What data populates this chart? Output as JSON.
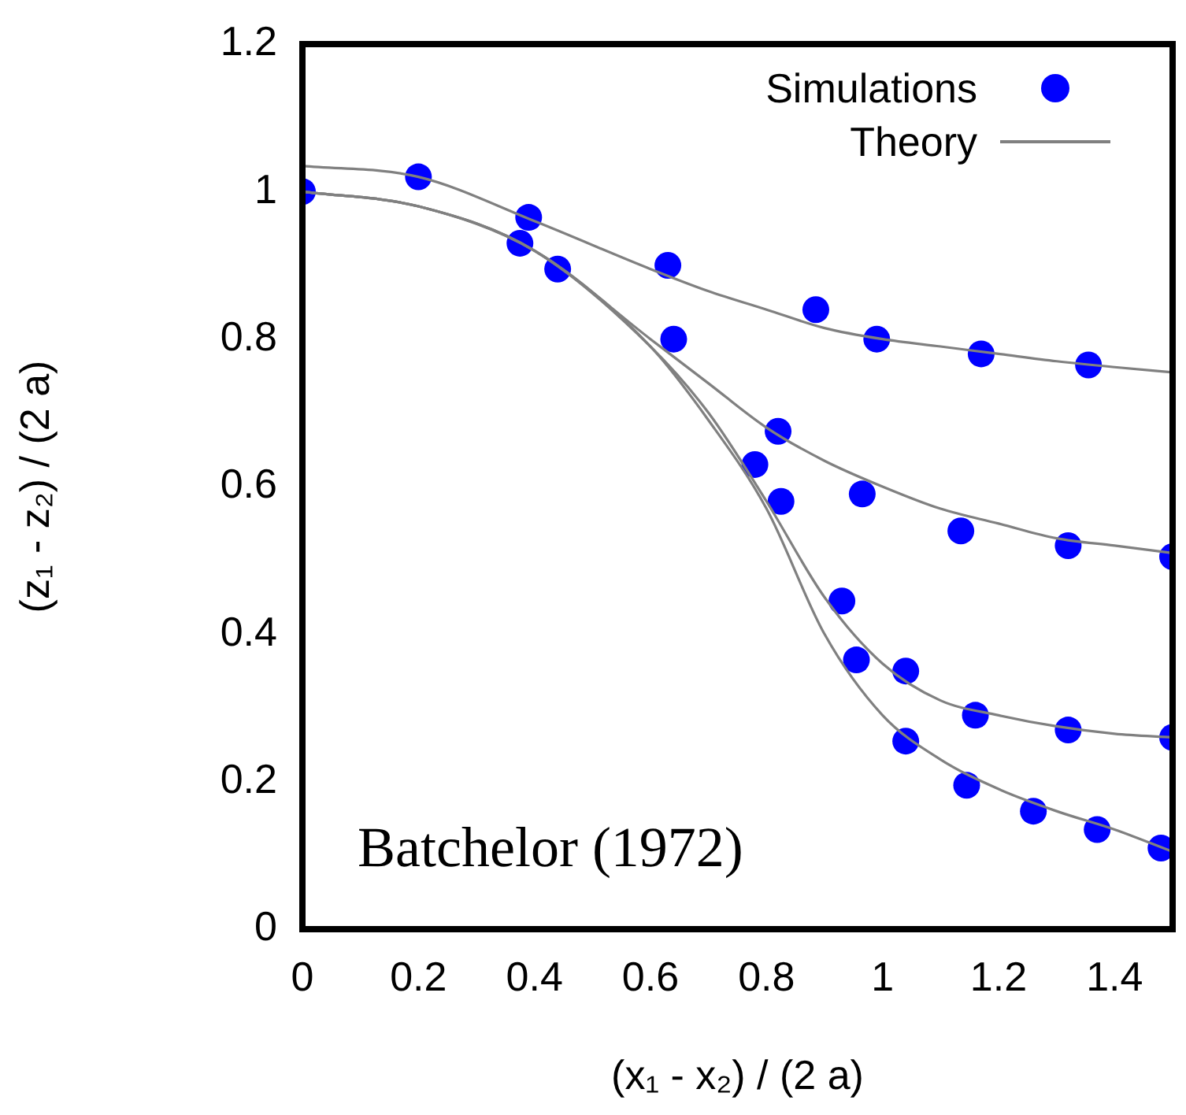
{
  "chart_data": {
    "type": "scatter",
    "xlabel": "(x₁ - x₂) / (2 a)",
    "ylabel": "(z₁ - z₂) / (2 a)",
    "xlim": [
      0,
      1.5
    ],
    "ylim": [
      0,
      1.2
    ],
    "xticks": [
      0,
      0.2,
      0.4,
      0.6,
      0.8,
      1,
      1.2,
      1.4
    ],
    "yticks": [
      0,
      0.2,
      0.4,
      0.6,
      0.8,
      1,
      1.2
    ],
    "grid": false,
    "legend": "top right",
    "annotations": [
      "Batchelor (1972)"
    ],
    "series": [
      {
        "name": "Simulations",
        "marker": "circle",
        "color": "#0000ff",
        "x": [
          0,
          0.2,
          0.39,
          0.375,
          0.44,
          0.63,
          0.64,
          0.885,
          0.78,
          0.82,
          0.825,
          0.965,
          0.99,
          0.93,
          0.955,
          1.04,
          1.04,
          1.16,
          1.135,
          1.17,
          1.145,
          1.32,
          1.32,
          1.355,
          1.26,
          1.37,
          1.48,
          1.5,
          1.5
        ],
        "values": [
          1.0,
          1.02,
          0.965,
          0.93,
          0.895,
          0.9,
          0.8,
          0.84,
          0.63,
          0.675,
          0.58,
          0.59,
          0.8,
          0.445,
          0.365,
          0.35,
          0.255,
          0.29,
          0.54,
          0.78,
          0.195,
          0.27,
          0.52,
          0.765,
          0.16,
          0.135,
          0.11,
          0.26,
          0.505
        ]
      },
      {
        "name": "Theory",
        "type": "line",
        "marker": "none",
        "line_style": "solid",
        "color": "#808080",
        "x": [
          0,
          0.2,
          0.4,
          0.6,
          0.7,
          0.8,
          0.9,
          1.0,
          1.1,
          1.2,
          1.3,
          1.4,
          1.5
        ],
        "values": [
          1.035,
          1.02,
          0.96,
          0.895,
          0.865,
          0.84,
          0.815,
          0.8,
          0.79,
          0.78,
          0.77,
          0.762,
          0.755
        ]
      },
      {
        "type": "line",
        "marker": "none",
        "line_style": "solid",
        "color": "#808080",
        "x": [
          0,
          0.2,
          0.4,
          0.6,
          0.7,
          0.8,
          0.9,
          1.0,
          1.1,
          1.2,
          1.3,
          1.4,
          1.5
        ],
        "values": [
          1.0,
          0.98,
          0.92,
          0.8,
          0.74,
          0.68,
          0.635,
          0.6,
          0.57,
          0.55,
          0.53,
          0.52,
          0.51
        ]
      },
      {
        "type": "line",
        "marker": "none",
        "line_style": "solid",
        "color": "#808080",
        "x": [
          0,
          0.2,
          0.4,
          0.6,
          0.7,
          0.8,
          0.9,
          1.0,
          1.1,
          1.2,
          1.3,
          1.4,
          1.5
        ],
        "values": [
          1.0,
          0.98,
          0.92,
          0.79,
          0.7,
          0.58,
          0.45,
          0.36,
          0.31,
          0.29,
          0.275,
          0.265,
          0.26
        ]
      },
      {
        "type": "line",
        "marker": "none",
        "line_style": "solid",
        "color": "#808080",
        "x": [
          0,
          0.2,
          0.4,
          0.6,
          0.7,
          0.8,
          0.9,
          1.0,
          1.1,
          1.2,
          1.3,
          1.4,
          1.5
        ],
        "values": [
          1.0,
          0.98,
          0.92,
          0.79,
          0.69,
          0.57,
          0.4,
          0.29,
          0.23,
          0.19,
          0.16,
          0.135,
          0.105
        ]
      }
    ]
  }
}
